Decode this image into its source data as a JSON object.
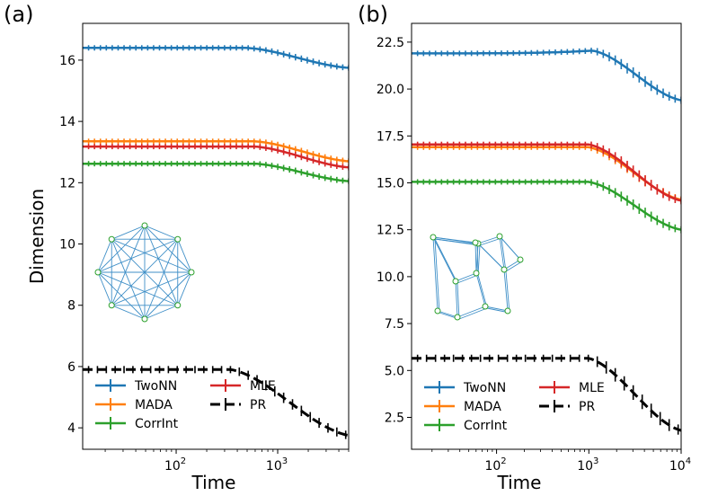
{
  "chart_data": [
    {
      "panel_label": "(a)",
      "type": "line",
      "xlabel": "Time",
      "ylabel": "Dimension",
      "xscale": "log",
      "xlim": [
        12,
        5000
      ],
      "ylim": [
        3.3,
        17.2
      ],
      "x_ticks": [
        {
          "value": 100,
          "base": "10",
          "exp": "2"
        },
        {
          "value": 1000,
          "base": "10",
          "exp": "3"
        }
      ],
      "y_ticks": [
        "4",
        "6",
        "8",
        "10",
        "12",
        "14",
        "16"
      ],
      "y_tick_values": [
        4,
        6,
        8,
        10,
        12,
        14,
        16
      ],
      "inset": "complete-graph-8",
      "legend": {
        "location": "lower-left",
        "columns": 2
      },
      "series": [
        {
          "name": "TwoNN",
          "color": "#1f77b4",
          "style": "solid",
          "x_flat": 12,
          "y_flat": 16.4,
          "x_knee": 500,
          "y_end": 15.75
        },
        {
          "name": "MADA",
          "color": "#ff7f0e",
          "style": "solid",
          "x_flat": 12,
          "y_flat": 13.35,
          "x_knee": 600,
          "y_end": 12.7
        },
        {
          "name": "CorrInt",
          "color": "#2ca02c",
          "style": "solid",
          "x_flat": 12,
          "y_flat": 12.62,
          "x_knee": 600,
          "y_end": 12.05
        },
        {
          "name": "MLE",
          "color": "#d62728",
          "style": "solid",
          "x_flat": 12,
          "y_flat": 13.18,
          "x_knee": 600,
          "y_end": 12.5
        },
        {
          "name": "PR",
          "color": "#000000",
          "style": "dashed",
          "x_flat": 12,
          "y_flat": 5.9,
          "x_knee": 350,
          "y_end": 3.75
        }
      ]
    },
    {
      "panel_label": "(b)",
      "type": "line",
      "xlabel": "Time",
      "ylabel": "",
      "xscale": "log",
      "xlim": [
        12,
        10000
      ],
      "ylim": [
        0.8,
        23.5
      ],
      "x_ticks": [
        {
          "value": 100,
          "base": "10",
          "exp": "2"
        },
        {
          "value": 1000,
          "base": "10",
          "exp": "3"
        },
        {
          "value": 10000,
          "base": "10",
          "exp": "4"
        }
      ],
      "y_ticks": [
        "2.5",
        "5.0",
        "7.5",
        "10.0",
        "12.5",
        "15.0",
        "17.5",
        "20.0",
        "22.5"
      ],
      "y_tick_values": [
        2.5,
        5.0,
        7.5,
        10.0,
        12.5,
        15.0,
        17.5,
        20.0,
        22.5
      ],
      "inset": "sparse-graph-12",
      "legend": {
        "location": "lower-left",
        "columns": 2
      },
      "series": [
        {
          "name": "TwoNN",
          "color": "#1f77b4",
          "style": "solid",
          "x_flat": 12,
          "y_flat": 21.9,
          "y_bump": 22.05,
          "x_knee": 1100,
          "y_end": 19.4
        },
        {
          "name": "MADA",
          "color": "#ff7f0e",
          "style": "solid",
          "x_flat": 12,
          "y_flat": 16.9,
          "x_knee": 1000,
          "y_end": 14.1
        },
        {
          "name": "CorrInt",
          "color": "#2ca02c",
          "style": "solid",
          "x_flat": 12,
          "y_flat": 15.05,
          "x_knee": 1000,
          "y_end": 12.5
        },
        {
          "name": "MLE",
          "color": "#d62728",
          "style": "solid",
          "x_flat": 12,
          "y_flat": 17.05,
          "x_knee": 1000,
          "y_end": 14.05
        },
        {
          "name": "PR",
          "color": "#000000",
          "style": "dashed",
          "x_flat": 12,
          "y_flat": 5.65,
          "x_knee": 1000,
          "y_end": 1.8
        }
      ]
    }
  ]
}
